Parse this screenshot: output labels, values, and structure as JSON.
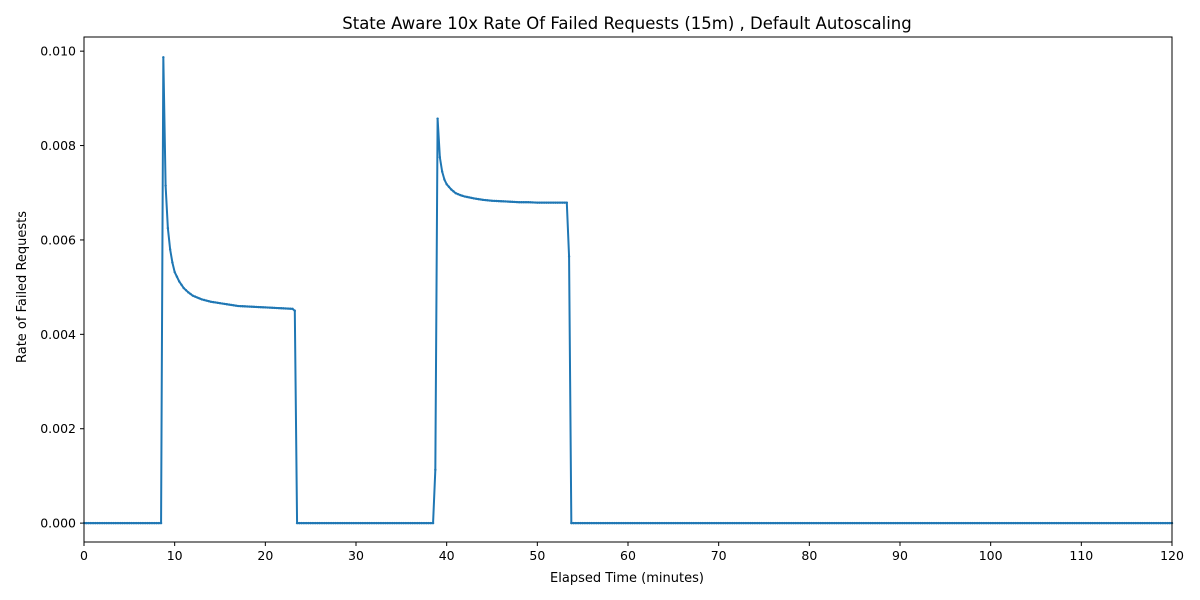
{
  "chart_data": {
    "type": "line",
    "title": "State Aware 10x Rate Of Failed Requests (15m) , Default Autoscaling",
    "xlabel": "Elapsed Time (minutes)",
    "ylabel": "Rate of Failed Requests",
    "xlim": [
      0,
      120
    ],
    "ylim": [
      -0.0004,
      0.0103
    ],
    "xticks": [
      0,
      10,
      20,
      30,
      40,
      50,
      60,
      70,
      80,
      90,
      100,
      110,
      120
    ],
    "xtick_labels": [
      "0",
      "10",
      "20",
      "30",
      "40",
      "50",
      "60",
      "70",
      "80",
      "90",
      "100",
      "110",
      "120"
    ],
    "yticks": [
      0.0,
      0.002,
      0.004,
      0.006,
      0.008,
      0.01
    ],
    "ytick_labels": [
      "0.000",
      "0.002",
      "0.004",
      "0.006",
      "0.008",
      "0.010"
    ],
    "grid": false,
    "color": "#1f77b4",
    "series": [
      {
        "name": "",
        "points": [
          [
            0,
            0
          ],
          [
            8.5,
            0
          ],
          [
            8.75,
            0.00987
          ],
          [
            9.0,
            0.00715
          ],
          [
            9.25,
            0.00625
          ],
          [
            9.5,
            0.0058
          ],
          [
            9.75,
            0.00552
          ],
          [
            10.0,
            0.00532
          ],
          [
            10.5,
            0.00512
          ],
          [
            11.0,
            0.00498
          ],
          [
            11.5,
            0.00489
          ],
          [
            12.0,
            0.00482
          ],
          [
            13.0,
            0.00474
          ],
          [
            14.0,
            0.00469
          ],
          [
            15.0,
            0.00466
          ],
          [
            16.0,
            0.00463
          ],
          [
            17.0,
            0.0046
          ],
          [
            18.0,
            0.00459
          ],
          [
            19.0,
            0.00458
          ],
          [
            20.0,
            0.00457
          ],
          [
            21.0,
            0.00456
          ],
          [
            22.0,
            0.00455
          ],
          [
            23.0,
            0.00454
          ],
          [
            23.25,
            0.0045
          ],
          [
            23.5,
            0
          ],
          [
            38.5,
            0
          ],
          [
            38.75,
            0.00113
          ],
          [
            39.0,
            0.00857
          ],
          [
            39.25,
            0.00775
          ],
          [
            39.5,
            0.00745
          ],
          [
            39.75,
            0.00728
          ],
          [
            40.0,
            0.00718
          ],
          [
            40.5,
            0.00707
          ],
          [
            41.0,
            0.00699
          ],
          [
            41.5,
            0.00695
          ],
          [
            42.0,
            0.00692
          ],
          [
            43.0,
            0.00688
          ],
          [
            44.0,
            0.00685
          ],
          [
            45.0,
            0.00683
          ],
          [
            46.0,
            0.00682
          ],
          [
            47.0,
            0.00681
          ],
          [
            48.0,
            0.0068
          ],
          [
            49.0,
            0.0068
          ],
          [
            50.0,
            0.00679
          ],
          [
            51.0,
            0.00679
          ],
          [
            52.0,
            0.00679
          ],
          [
            53.0,
            0.00679
          ],
          [
            53.25,
            0.00679
          ],
          [
            53.5,
            0.00565
          ],
          [
            53.75,
            0
          ],
          [
            120,
            0
          ]
        ]
      }
    ]
  }
}
